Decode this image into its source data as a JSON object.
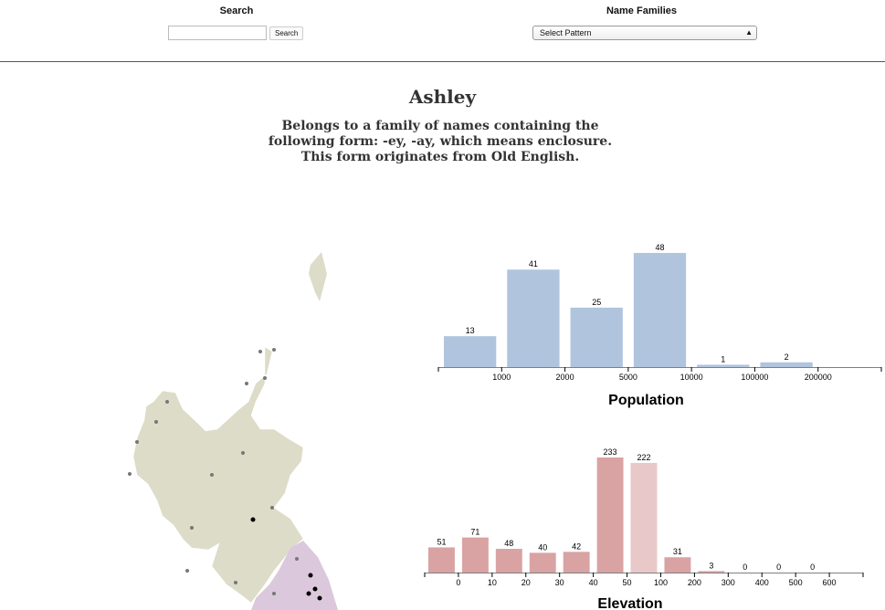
{
  "header": {
    "search_label": "Search",
    "search_button": "Search",
    "families_label": "Name Families",
    "families_select": "Select Pattern"
  },
  "name": "Ashley",
  "description": "Belongs to a family of names containing the following form: -ey, -ay, which means enclosure. This form originates from Old English.",
  "charts": [
    {
      "type": "bar",
      "title": "Population",
      "color": "#b0c4de",
      "tick_labels": [
        null,
        "1000",
        "2000",
        "5000",
        "10000",
        "100000",
        "200000",
        null
      ],
      "values": [
        13,
        41,
        25,
        48,
        1,
        2
      ]
    },
    {
      "type": "bar",
      "title": "Elevation",
      "color": "#d9a3a3",
      "highlight_color": "#e8c8c8",
      "highlight_index": 6,
      "tick_labels": [
        null,
        "0",
        "10",
        "20",
        "30",
        "40",
        "50",
        "100",
        "200",
        "300",
        "400",
        "500",
        "600",
        null
      ],
      "values": [
        51,
        71,
        48,
        40,
        42,
        233,
        222,
        31,
        3,
        0,
        0,
        0
      ]
    }
  ]
}
